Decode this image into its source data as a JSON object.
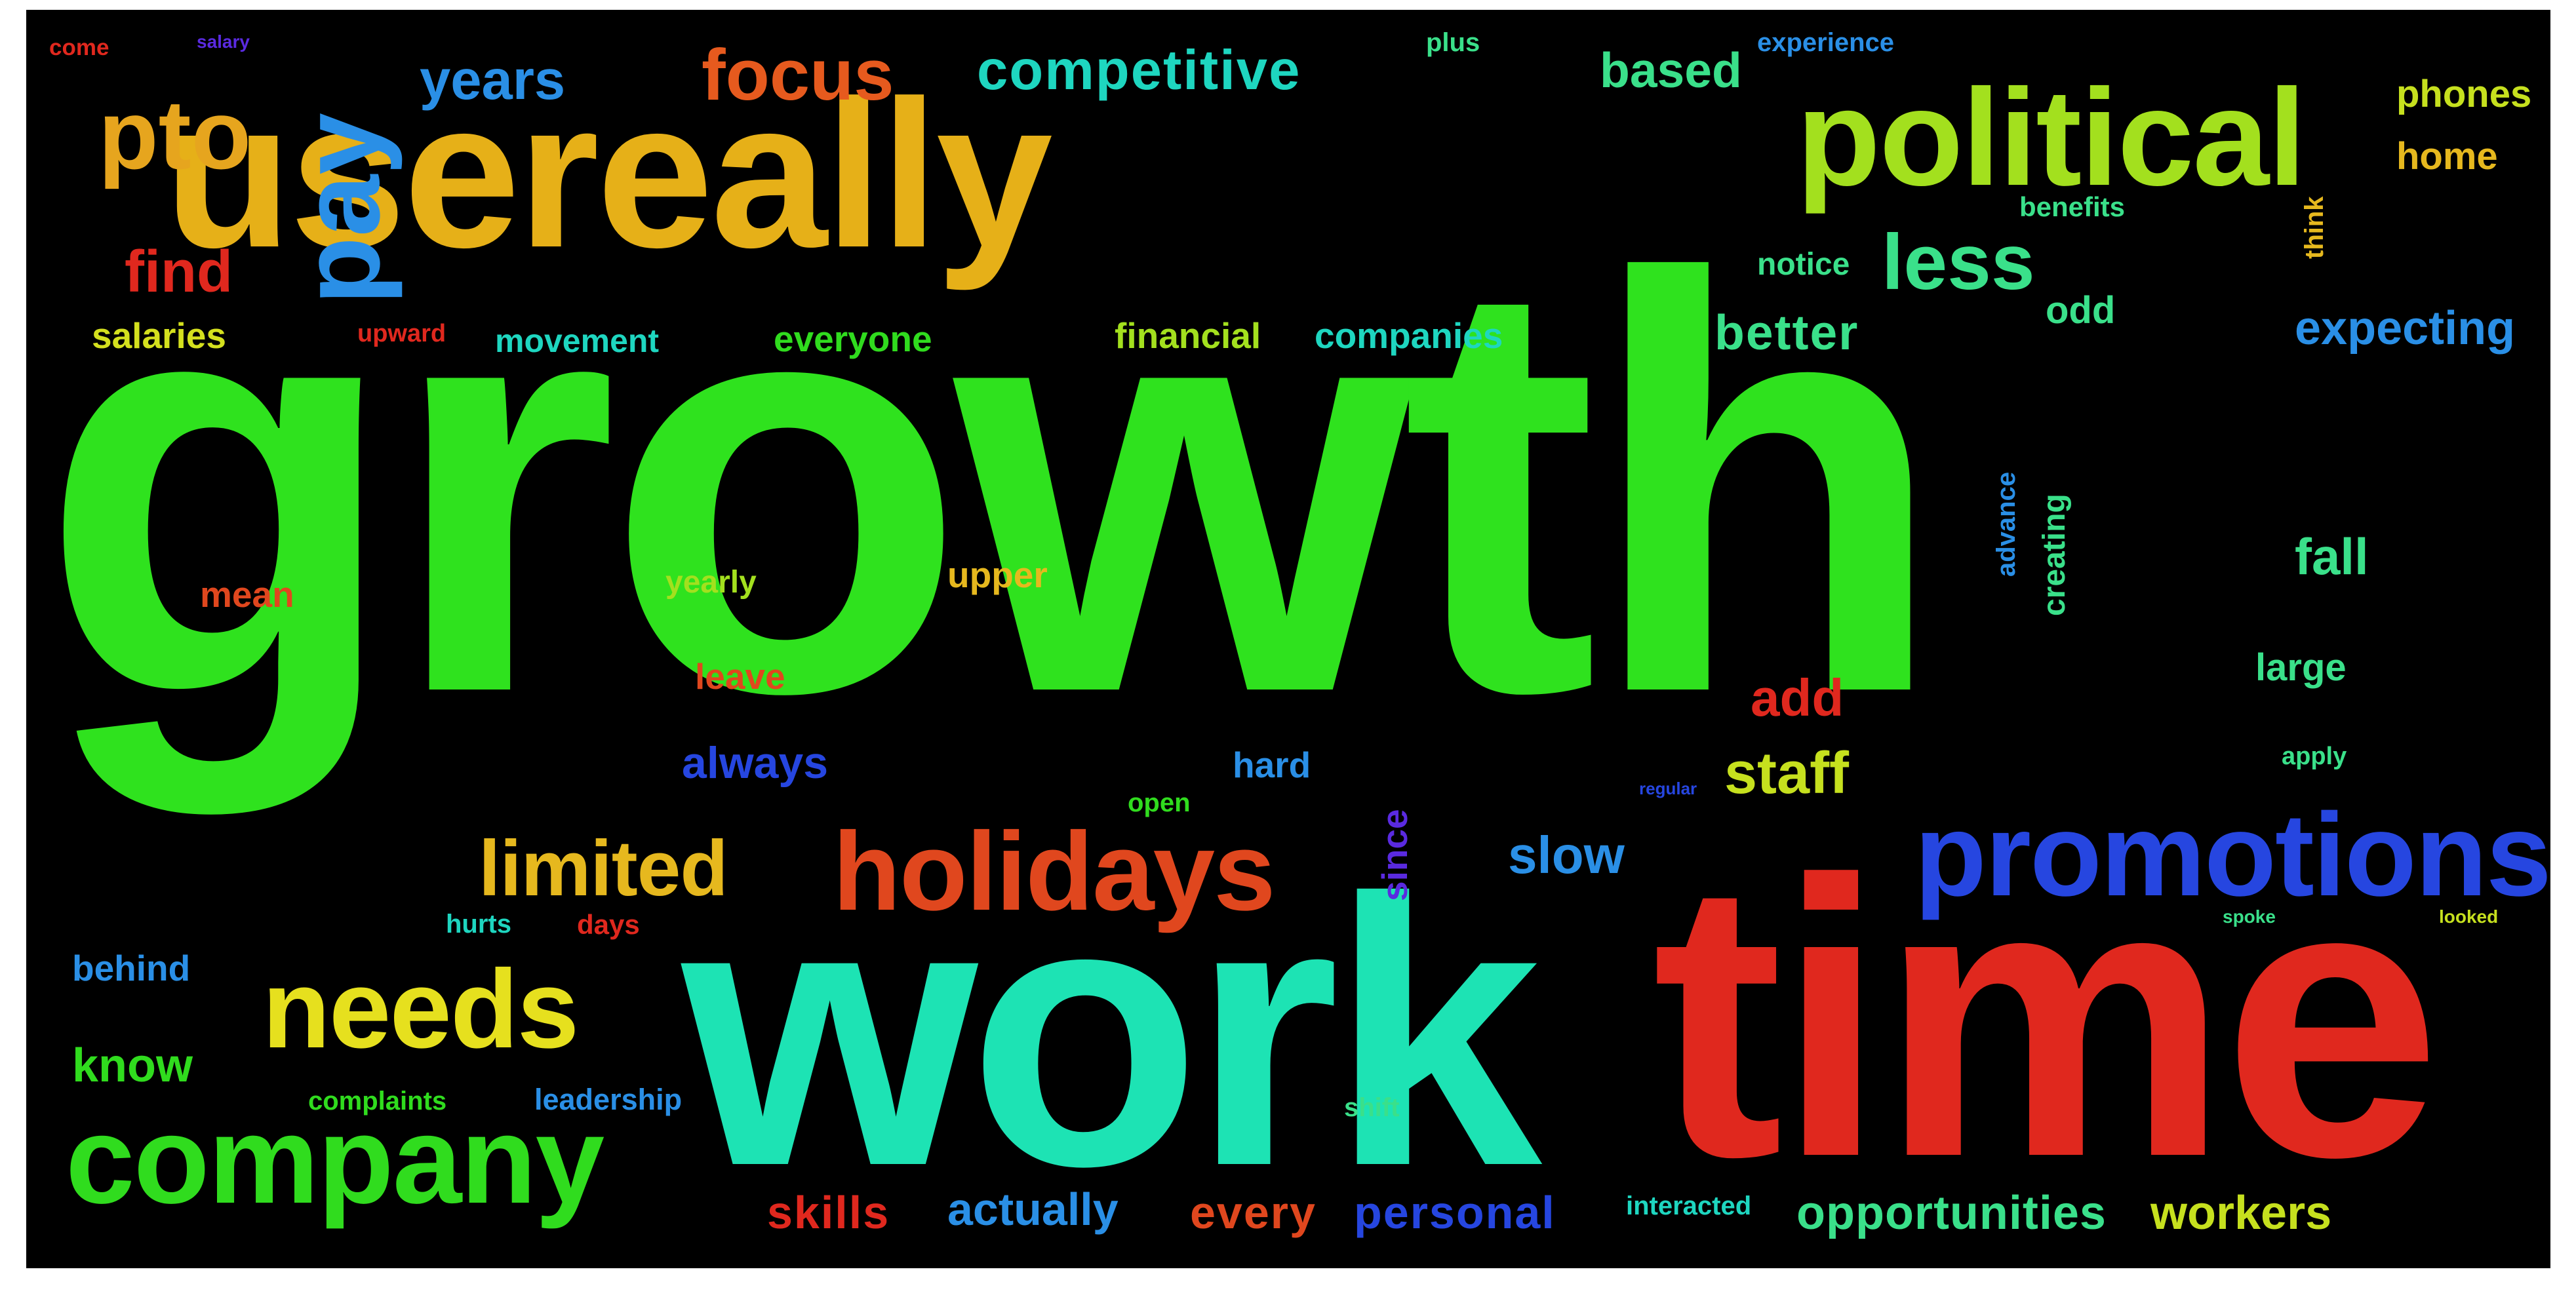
{
  "words": [
    {
      "id": "growth",
      "text": "growth",
      "color": "#2fe21e"
    },
    {
      "id": "usereally",
      "text": "usereally",
      "color": "#e6b018"
    },
    {
      "id": "work",
      "text": "work",
      "color": "#1de3b4"
    },
    {
      "id": "time",
      "text": "time",
      "color": "#e0281e"
    },
    {
      "id": "political",
      "text": "political",
      "color": "#a3e01e"
    },
    {
      "id": "pay",
      "text": "pay",
      "color": "#2a8fe6"
    },
    {
      "id": "holidays",
      "text": "holidays",
      "color": "#e0471e"
    },
    {
      "id": "promotions",
      "text": "promotions",
      "color": "#2646e0"
    },
    {
      "id": "company",
      "text": "company",
      "color": "#30dc1e"
    },
    {
      "id": "needs",
      "text": "needs",
      "color": "#e6e01e"
    },
    {
      "id": "limited",
      "text": "limited",
      "color": "#e6b81e"
    },
    {
      "id": "pto",
      "text": "pto",
      "color": "#e6a51e"
    },
    {
      "id": "focus",
      "text": "focus",
      "color": "#e65a1e"
    },
    {
      "id": "competitive",
      "text": "competitive",
      "color": "#1ed6c0"
    },
    {
      "id": "years",
      "text": "years",
      "color": "#2a8fe6"
    },
    {
      "id": "less",
      "text": "less",
      "color": "#3ae08a"
    },
    {
      "id": "find",
      "text": "find",
      "color": "#e0281e"
    },
    {
      "id": "based",
      "text": "based",
      "color": "#3ae08a"
    },
    {
      "id": "phones",
      "text": "phones",
      "color": "#c6e01e"
    },
    {
      "id": "home",
      "text": "home",
      "color": "#e6b81e"
    },
    {
      "id": "salaries",
      "text": "salaries",
      "color": "#d4e01e"
    },
    {
      "id": "upward",
      "text": "upward",
      "color": "#e0281e"
    },
    {
      "id": "movement",
      "text": "movement",
      "color": "#1ed6c0"
    },
    {
      "id": "everyone",
      "text": "everyone",
      "color": "#30dc1e"
    },
    {
      "id": "financial",
      "text": "financial",
      "color": "#a3e01e"
    },
    {
      "id": "companies",
      "text": "companies",
      "color": "#1ed6c0"
    },
    {
      "id": "better",
      "text": "better",
      "color": "#3ae08a"
    },
    {
      "id": "expecting",
      "text": "expecting",
      "color": "#2a8fe6"
    },
    {
      "id": "notice",
      "text": "notice",
      "color": "#3ae08a"
    },
    {
      "id": "odd",
      "text": "odd",
      "color": "#3ae08a"
    },
    {
      "id": "benefits",
      "text": "benefits",
      "color": "#3ae08a"
    },
    {
      "id": "think",
      "text": "think",
      "color": "#e6b81e"
    },
    {
      "id": "fall",
      "text": "fall",
      "color": "#3ae08a"
    },
    {
      "id": "large",
      "text": "large",
      "color": "#3ae08a"
    },
    {
      "id": "mean",
      "text": "mean",
      "color": "#e0471e"
    },
    {
      "id": "upper",
      "text": "upper",
      "color": "#e6b81e"
    },
    {
      "id": "yearly",
      "text": "yearly",
      "color": "#a3e01e"
    },
    {
      "id": "leave",
      "text": "leave",
      "color": "#e0471e"
    },
    {
      "id": "add",
      "text": "add",
      "color": "#e0281e"
    },
    {
      "id": "staff",
      "text": "staff",
      "color": "#c6e01e"
    },
    {
      "id": "always",
      "text": "always",
      "color": "#2646e0"
    },
    {
      "id": "hard",
      "text": "hard",
      "color": "#2a8fe6"
    },
    {
      "id": "slow",
      "text": "slow",
      "color": "#2a8fe6"
    },
    {
      "id": "since",
      "text": "since",
      "color": "#5a2ae0"
    },
    {
      "id": "creating",
      "text": "creating",
      "color": "#3ae08a"
    },
    {
      "id": "advance",
      "text": "advance",
      "color": "#2a8fe6"
    },
    {
      "id": "open",
      "text": "open",
      "color": "#30dc1e"
    },
    {
      "id": "behind",
      "text": "behind",
      "color": "#2a8fe6"
    },
    {
      "id": "know",
      "text": "know",
      "color": "#30dc1e"
    },
    {
      "id": "complaints",
      "text": "complaints",
      "color": "#30dc1e"
    },
    {
      "id": "leadership",
      "text": "leadership",
      "color": "#2a8fe6"
    },
    {
      "id": "hurts",
      "text": "hurts",
      "color": "#1ed6c0"
    },
    {
      "id": "days",
      "text": "days",
      "color": "#e0281e"
    },
    {
      "id": "shift",
      "text": "shift",
      "color": "#3ae08a"
    },
    {
      "id": "skills",
      "text": "skills",
      "color": "#e0281e"
    },
    {
      "id": "actually",
      "text": "actually",
      "color": "#2a8fe6"
    },
    {
      "id": "every",
      "text": "every",
      "color": "#e0471e"
    },
    {
      "id": "personal",
      "text": "personal",
      "color": "#2646e0"
    },
    {
      "id": "interacted",
      "text": "interacted",
      "color": "#1ed6c0"
    },
    {
      "id": "opportunities",
      "text": "opportunities",
      "color": "#3ae08a"
    },
    {
      "id": "workers",
      "text": "workers",
      "color": "#c6e01e"
    },
    {
      "id": "apply",
      "text": "apply",
      "color": "#3ae08a"
    },
    {
      "id": "regular",
      "text": "regular",
      "color": "#2646e0"
    },
    {
      "id": "plus",
      "text": "plus",
      "color": "#3ae08a"
    },
    {
      "id": "experience",
      "text": "experience",
      "color": "#2a8fe6"
    },
    {
      "id": "come",
      "text": "come",
      "color": "#e0281e"
    },
    {
      "id": "salary",
      "text": "salary",
      "color": "#5a2ae0"
    },
    {
      "id": "spoke",
      "text": "spoke",
      "color": "#3ae08a"
    },
    {
      "id": "looked",
      "text": "looked",
      "color": "#c6e01e"
    }
  ]
}
